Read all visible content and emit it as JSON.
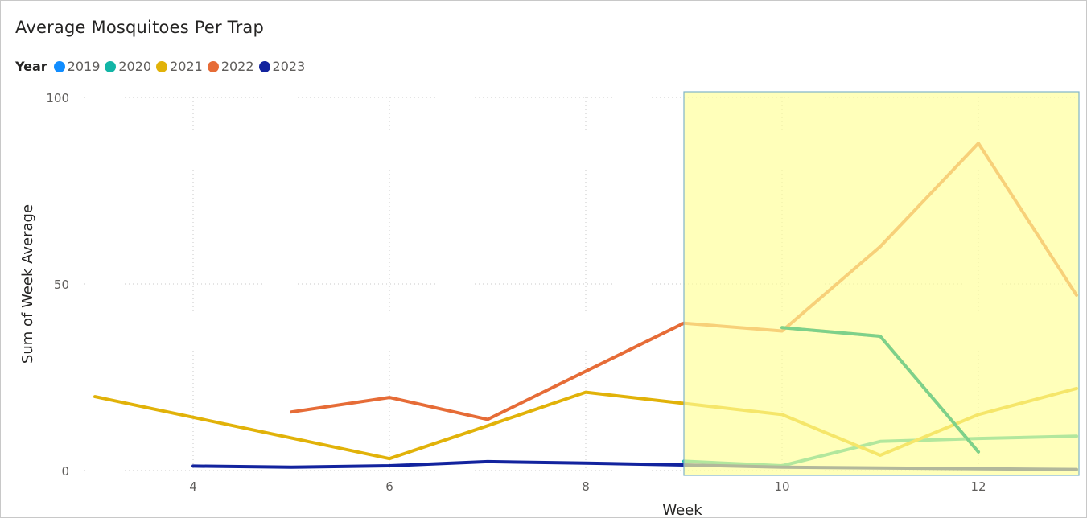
{
  "chart_data": {
    "type": "line",
    "title": "Average Mosquitoes Per Trap",
    "xlabel": "Week",
    "ylabel": "Sum of Week Average",
    "legend_title": "Year",
    "legend_position": "top-left",
    "grid": true,
    "xlim": [
      3,
      13
    ],
    "ylim": [
      0,
      100
    ],
    "x_ticks": [
      4,
      6,
      8,
      10,
      12
    ],
    "y_ticks": [
      0,
      50,
      100
    ],
    "highlight": {
      "x_range": [
        9,
        13
      ],
      "fill": "#ffff99",
      "stroke": "#7fb3c8"
    },
    "series": [
      {
        "name": "2019",
        "color": "#118dff",
        "x": [],
        "y": []
      },
      {
        "name": "2020",
        "color": "#12b5a6",
        "x": [
          9,
          10,
          11,
          12,
          13
        ],
        "y": [
          2.5,
          1.3,
          7.8,
          8.6,
          9.2
        ]
      },
      {
        "name": "2021",
        "color": "#e1b209",
        "x": [
          3,
          6,
          7,
          8,
          10,
          11,
          12,
          13
        ],
        "y": [
          19.8,
          3.2,
          12.0,
          21.0,
          15.0,
          4.1,
          15.0,
          22.0
        ]
      },
      {
        "name": "2022",
        "color": "#e66c37",
        "x": [
          5,
          6,
          7,
          9,
          10,
          11,
          12,
          13
        ],
        "y": [
          15.7,
          19.6,
          13.7,
          39.5,
          37.4,
          60.0,
          87.7,
          47.0
        ]
      },
      {
        "name": "2022",
        "color": "#e66c37",
        "x": [
          10,
          11,
          12
        ],
        "y": [
          38.3,
          36.0,
          5.0
        ],
        "legend": false,
        "highlight_color": "#6fd08c"
      },
      {
        "name": "2023",
        "color": "#12239e",
        "x": [
          4,
          5,
          6,
          7,
          8,
          9,
          10,
          11,
          12,
          13
        ],
        "y": [
          1.2,
          0.9,
          1.3,
          2.4,
          2.0,
          1.5,
          0.9,
          0.7,
          0.5,
          0.3
        ]
      }
    ]
  }
}
